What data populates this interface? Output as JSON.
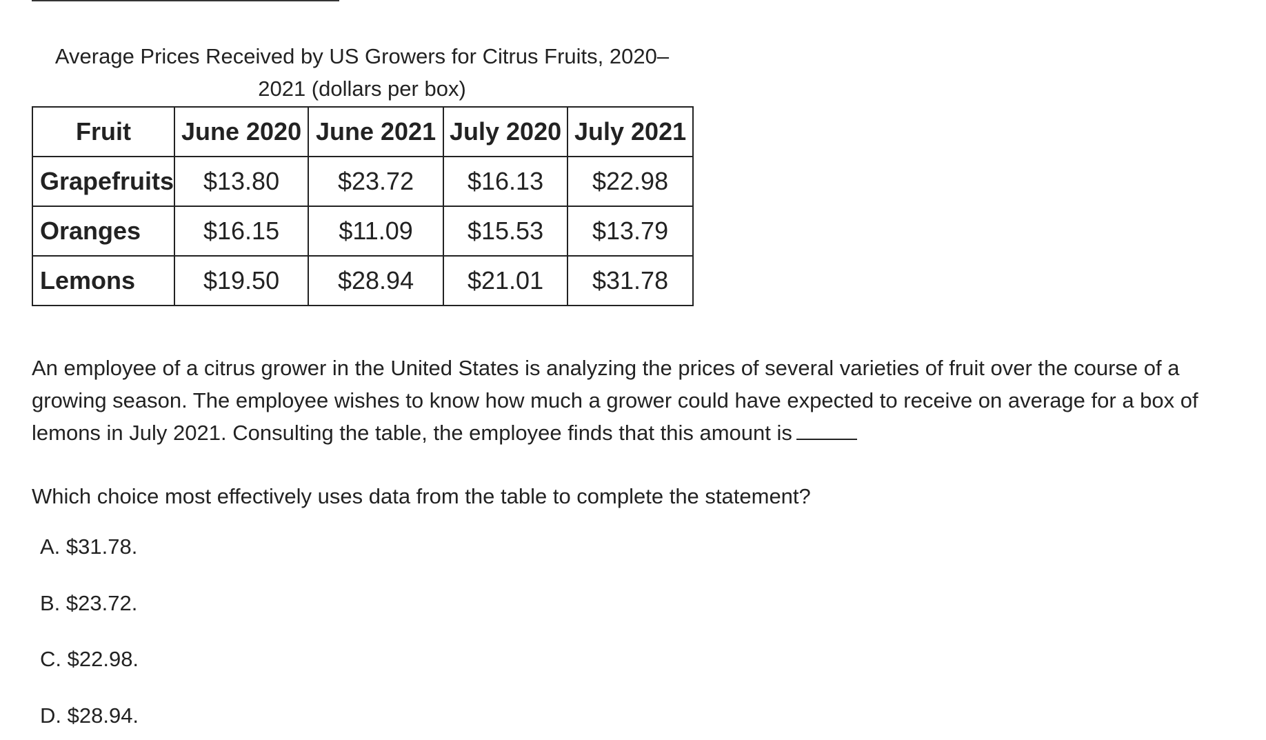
{
  "caption": {
    "line1": "Average Prices Received by US Growers for Citrus Fruits, 2020–",
    "line2": "2021 (dollars per box)"
  },
  "table": {
    "headers": [
      "Fruit",
      "June 2020",
      "June 2021",
      "July 2020",
      "July 2021"
    ],
    "rows": [
      {
        "fruit": "Grapefruits",
        "prices": [
          "$13.80",
          "$23.72",
          "$16.13",
          "$22.98"
        ]
      },
      {
        "fruit": "Oranges",
        "prices": [
          "$16.15",
          "$11.09",
          "$15.53",
          "$13.79"
        ]
      },
      {
        "fruit": "Lemons",
        "prices": [
          "$19.50",
          "$28.94",
          "$21.01",
          "$31.78"
        ]
      }
    ]
  },
  "passage": "An employee of a citrus grower in the United States is analyzing the prices of several varieties of fruit over the course of a growing season. The employee wishes to know how much a grower could have expected to receive on average for a box of lemons in July 2021. Consulting the table, the employee finds that this amount is",
  "question": "Which choice most effectively uses data from the table to complete the statement?",
  "choices": [
    {
      "label": "A. $31.78."
    },
    {
      "label": "B. $23.72."
    },
    {
      "label": "C. $22.98."
    },
    {
      "label": "D. $28.94."
    }
  ]
}
